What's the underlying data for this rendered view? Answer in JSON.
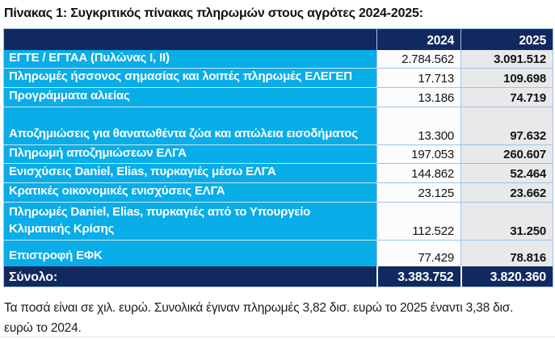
{
  "title": "Πίνακας 1: Συγκριτικός πίνακας πληρωμών στους αγρότες 2024-2025:",
  "table": {
    "header": {
      "label": "",
      "y2024": "2024",
      "y2025": "2025"
    },
    "rows": [
      {
        "label": "ΕΓΤΕ / ΕΓΤΑΑ (Πυλώνας Ι, ΙΙ)",
        "y2024": "2.784.562",
        "y2025": "3.091.512"
      },
      {
        "label": "Πληρωμές ήσσονος σημασίας και λοιπές πληρωμές ΕΛΕΓΕΠ",
        "y2024": "17.713",
        "y2025": "109.698"
      },
      {
        "label": "Προγράμματα αλιείας",
        "y2024": "13.186",
        "y2025": "74.719"
      },
      {
        "label": "Αποζημιώσεις για θανατωθέντα ζώα και απώλεια εισοδήματος",
        "y2024": "13.300",
        "y2025": "97.632"
      },
      {
        "label": "Πληρωμή αποζημιώσεων ΕΛΓΑ",
        "y2024": "197.053",
        "y2025": "260.607"
      },
      {
        "label": "Ενισχύσεις Daniel, Elias, πυρκαγιές μέσω ΕΛΓΑ",
        "y2024": "144.862",
        "y2025": "52.464"
      },
      {
        "label": "Κρατικές οικονομικές ενισχύσεις ΕΛΓΑ",
        "y2024": "23.125",
        "y2025": "23.662"
      },
      {
        "label": "Πληρωμές Daniel, Elias, πυρκαγιές από το Υπουργείο Κλιματικής Κρίσης",
        "y2024": "112.522",
        "y2025": "31.250"
      },
      {
        "label": "Επιστροφή ΕΦΚ",
        "y2024": "77.429",
        "y2025": "78.816"
      }
    ],
    "total": {
      "label": "Σύνολο:",
      "y2024": "3.383.752",
      "y2025": "3.820.360"
    }
  },
  "footnote": "Τα ποσά είναι σε χιλ. ευρώ. Συνολικά έγιναν πληρωμές 3,82 δισ. ευρώ το 2025 έναντι 3,38 δισ. ευρώ το 2024.",
  "colors": {
    "header_navy": "#12295f",
    "row_blue": "#09ade8",
    "grid_blue": "#9dc3e6",
    "col_2024_bg": "#fcfcfc",
    "col_2025_bg": "#e9e9e9"
  }
}
